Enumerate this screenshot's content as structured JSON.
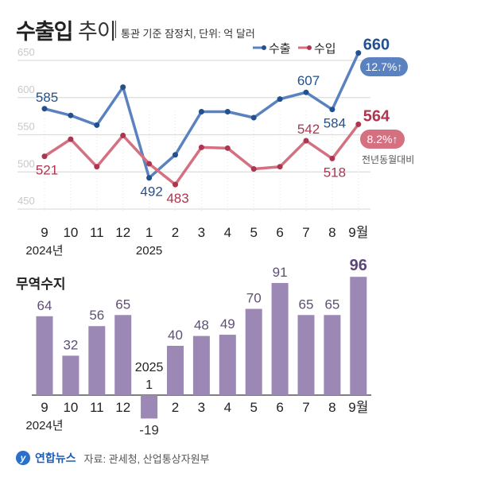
{
  "header": {
    "title_bold": "수출입",
    "title_light": "추이",
    "subtitle": "통관 기준 잠정치, 단위: 억 달러"
  },
  "colors": {
    "export": "#5b82c0",
    "export_dark": "#23508f",
    "import": "#d4707f",
    "import_dark": "#ad3550",
    "bar": "#9b88b5",
    "bar_label": "#5e5075"
  },
  "chart_data": [
    {
      "type": "line",
      "categories": [
        "9",
        "10",
        "11",
        "12",
        "1",
        "2",
        "3",
        "4",
        "5",
        "6",
        "7",
        "8",
        "9월"
      ],
      "category_sublabels": {
        "0": "2024년",
        "4": "2025"
      },
      "ylim": [
        450,
        650
      ],
      "yticks": [
        450,
        500,
        550,
        600,
        650
      ],
      "grid": true,
      "legend": "top-right",
      "series": [
        {
          "name": "수출",
          "values": [
            585,
            576,
            563,
            614,
            492,
            523,
            581,
            581,
            573,
            598,
            607,
            584,
            660
          ],
          "labels": [
            "585",
            null,
            null,
            null,
            "492",
            null,
            null,
            null,
            null,
            null,
            "607",
            "584",
            "660"
          ],
          "badge": "12.7%↑"
        },
        {
          "name": "수입",
          "values": [
            521,
            544,
            507,
            549,
            511,
            483,
            533,
            532,
            504,
            507,
            542,
            518,
            564
          ],
          "labels": [
            "521",
            null,
            null,
            null,
            null,
            "483",
            null,
            null,
            null,
            null,
            "542",
            "518",
            "564"
          ],
          "badge": "8.2%↑"
        }
      ],
      "badge_note": "전년동월대비"
    },
    {
      "type": "bar",
      "title": "무역수지",
      "categories": [
        "9",
        "10",
        "11",
        "12",
        "1",
        "2",
        "3",
        "4",
        "5",
        "6",
        "7",
        "8",
        "9월"
      ],
      "category_sublabels": {
        "0": "2024년",
        "4": "2025"
      },
      "values": [
        64,
        32,
        56,
        65,
        -19,
        40,
        48,
        49,
        70,
        91,
        65,
        65,
        96
      ],
      "labels": [
        "64",
        "32",
        "56",
        "65",
        "-19",
        "40",
        "48",
        "49",
        "70",
        "91",
        "65",
        "65",
        "96"
      ]
    }
  ],
  "footer": {
    "brand": "연합뉴스",
    "source": "자료: 관세청, 산업통상자원부"
  }
}
